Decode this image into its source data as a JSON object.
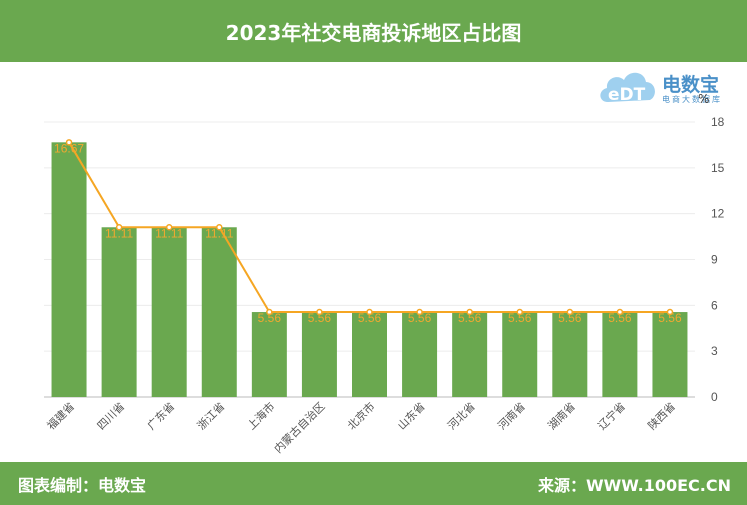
{
  "header": {
    "title": "2023年社交电商投诉地区占比图"
  },
  "footer": {
    "left": "图表编制：电数宝",
    "right": "来源：WWW.100EC.CN"
  },
  "logo": {
    "name": "电数宝",
    "subtitle": "电商大数据库",
    "mark": "eDT",
    "icon": "cloud-logo-icon"
  },
  "colors": {
    "bar": "#6aa84f",
    "line": "#f5a623",
    "label": "#f0a830",
    "header": "#6aa84f"
  },
  "chart_data": {
    "type": "bar",
    "unit": "%",
    "categories": [
      "福建省",
      "四川省",
      "广东省",
      "浙江省",
      "上海市",
      "内蒙古自治区",
      "北京市",
      "山东省",
      "河北省",
      "河南省",
      "湖南省",
      "辽宁省",
      "陕西省"
    ],
    "series": [
      {
        "type": "bar",
        "values": [
          16.67,
          11.11,
          11.11,
          11.11,
          5.56,
          5.56,
          5.56,
          5.56,
          5.56,
          5.56,
          5.56,
          5.56,
          5.56
        ]
      },
      {
        "type": "line",
        "values": [
          16.67,
          11.11,
          11.11,
          11.11,
          5.56,
          5.56,
          5.56,
          5.56,
          5.56,
          5.56,
          5.56,
          5.56,
          5.56
        ]
      }
    ],
    "data_labels": [
      "16.67",
      "11.11",
      "11.11",
      "11.11",
      "5.56",
      "5.56",
      "5.56",
      "5.56",
      "5.56",
      "5.56",
      "5.56",
      "5.56",
      "5.56"
    ],
    "yticks": [
      "0",
      "3",
      "6",
      "9",
      "12",
      "15",
      "18"
    ],
    "ylim": [
      0,
      18
    ],
    "yaxis_position": "right",
    "grid": true
  }
}
